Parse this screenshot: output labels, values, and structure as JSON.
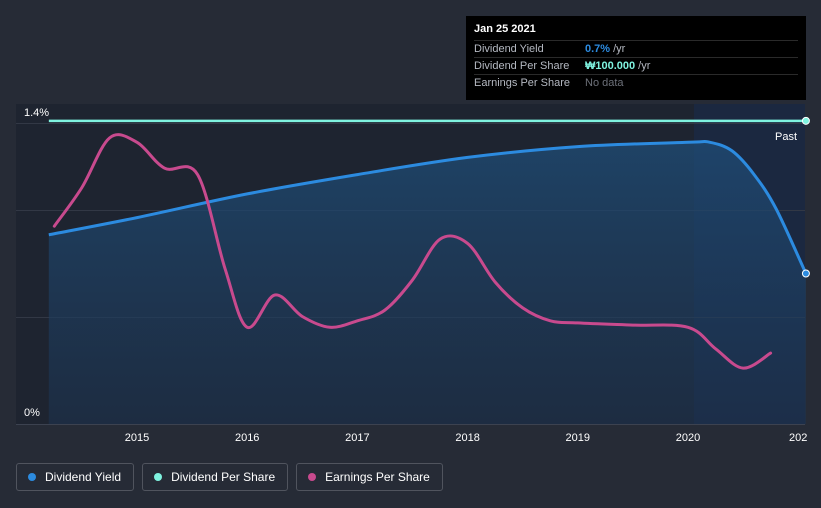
{
  "chart_data": {
    "type": "line",
    "title": "",
    "xlabel": "",
    "ylabel": "",
    "x_ticks": [
      "2015",
      "2016",
      "2017",
      "2018",
      "2019",
      "2020",
      "202"
    ],
    "y_tick_labels": {
      "top": "1.4%",
      "bottom": "0%"
    },
    "ylim": [
      0,
      1.4
    ],
    "forecast_label": "Past",
    "series": [
      {
        "name": "Dividend Yield",
        "color": "#2c8be0",
        "area": true,
        "points": [
          [
            2014.2,
            0.88
          ],
          [
            2015.0,
            0.96
          ],
          [
            2016.0,
            1.07
          ],
          [
            2017.0,
            1.16
          ],
          [
            2018.0,
            1.24
          ],
          [
            2019.0,
            1.29
          ],
          [
            2020.0,
            1.31
          ],
          [
            2020.2,
            1.31
          ],
          [
            2020.4,
            1.27
          ],
          [
            2020.6,
            1.16
          ],
          [
            2020.8,
            1.0
          ],
          [
            2021.07,
            0.7
          ]
        ]
      },
      {
        "name": "Dividend Per Share",
        "color": "#7ff3e0",
        "points": [
          [
            2014.2,
            1.41
          ],
          [
            2021.07,
            1.41
          ]
        ]
      },
      {
        "name": "Earnings Per Share",
        "color": "#c84a8e",
        "points": [
          [
            2014.25,
            0.92
          ],
          [
            2014.5,
            1.1
          ],
          [
            2014.75,
            1.33
          ],
          [
            2015.0,
            1.31
          ],
          [
            2015.25,
            1.19
          ],
          [
            2015.55,
            1.16
          ],
          [
            2015.8,
            0.72
          ],
          [
            2016.0,
            0.45
          ],
          [
            2016.25,
            0.6
          ],
          [
            2016.5,
            0.5
          ],
          [
            2016.75,
            0.45
          ],
          [
            2017.0,
            0.48
          ],
          [
            2017.25,
            0.53
          ],
          [
            2017.5,
            0.67
          ],
          [
            2017.75,
            0.86
          ],
          [
            2018.0,
            0.84
          ],
          [
            2018.25,
            0.66
          ],
          [
            2018.5,
            0.54
          ],
          [
            2018.75,
            0.48
          ],
          [
            2019.0,
            0.47
          ],
          [
            2019.5,
            0.46
          ],
          [
            2020.0,
            0.45
          ],
          [
            2020.25,
            0.35
          ],
          [
            2020.5,
            0.26
          ],
          [
            2020.75,
            0.33
          ]
        ]
      }
    ]
  },
  "tooltip": {
    "date": "Jan 25 2021",
    "rows": [
      {
        "label": "Dividend Yield",
        "value": "0.7%",
        "unit": "/yr",
        "color": "#2c8be0"
      },
      {
        "label": "Dividend Per Share",
        "value": "₩100.000",
        "unit": "/yr",
        "color": "#7ff3e0"
      },
      {
        "label": "Earnings Per Share",
        "nodata": "No data"
      }
    ]
  },
  "legend": [
    {
      "label": "Dividend Yield",
      "color": "#2c8be0"
    },
    {
      "label": "Dividend Per Share",
      "color": "#7ff3e0"
    },
    {
      "label": "Earnings Per Share",
      "color": "#c84a8e"
    }
  ]
}
